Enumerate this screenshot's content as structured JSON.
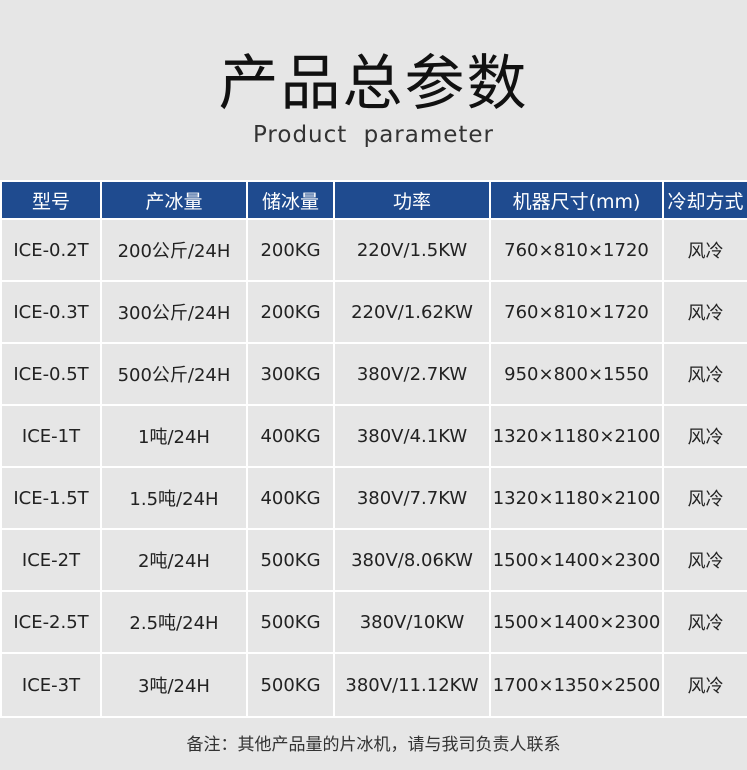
{
  "title": "产品总参数",
  "subtitle": "Product  parameter",
  "table": {
    "headers": [
      "型号",
      "产冰量",
      "储冰量",
      "功率",
      "机器尺寸(mm)",
      "冷却方式"
    ],
    "rows": [
      [
        "ICE-0.2T",
        "200公斤/24H",
        "200KG",
        "220V/1.5KW",
        "760×810×1720",
        "风冷"
      ],
      [
        "ICE-0.3T",
        "300公斤/24H",
        "200KG",
        "220V/1.62KW",
        "760×810×1720",
        "风冷"
      ],
      [
        "ICE-0.5T",
        "500公斤/24H",
        "300KG",
        "380V/2.7KW",
        "950×800×1550",
        "风冷"
      ],
      [
        "ICE-1T",
        "1吨/24H",
        "400KG",
        "380V/4.1KW",
        "1320×1180×2100",
        "风冷"
      ],
      [
        "ICE-1.5T",
        "1.5吨/24H",
        "400KG",
        "380V/7.7KW",
        "1320×1180×2100",
        "风冷"
      ],
      [
        "ICE-2T",
        "2吨/24H",
        "500KG",
        "380V/8.06KW",
        "1500×1400×2300",
        "风冷"
      ],
      [
        "ICE-2.5T",
        "2.5吨/24H",
        "500KG",
        "380V/10KW",
        "1500×1400×2300",
        "风冷"
      ],
      [
        "ICE-3T",
        "3吨/24H",
        "500KG",
        "380V/11.12KW",
        "1700×1350×2500",
        "风冷"
      ]
    ]
  },
  "note": "备注：其他产品量的片冰机，请与我司负责人联系",
  "colors": {
    "header_bg": "#1f4b8f",
    "background": "#e6e6e6"
  }
}
